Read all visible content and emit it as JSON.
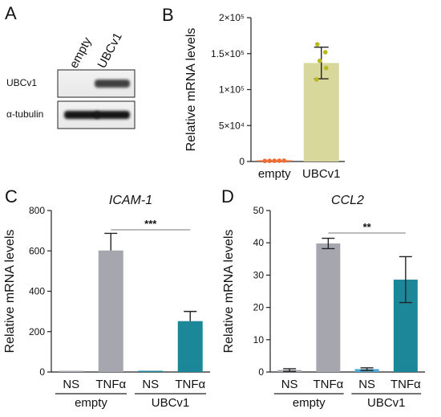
{
  "panels": {
    "A": "A",
    "B": "B",
    "C": "C",
    "D": "D"
  },
  "blot": {
    "lanes": [
      "empty",
      "UBCv1"
    ],
    "rows": [
      {
        "label": "UBCv1",
        "intensity": [
          0.0,
          0.75
        ]
      },
      {
        "label": "α-tubulin",
        "intensity": [
          0.95,
          0.95
        ]
      }
    ]
  },
  "chart_data": [
    {
      "id": "B",
      "type": "bar",
      "ylabel": "Relative mRNA levels",
      "categories": [
        "empty",
        "UBCv1"
      ],
      "ylim": [
        0,
        200000
      ],
      "yticks": [
        {
          "value": 0,
          "label": "0"
        },
        {
          "value": 50000,
          "label": "5×10⁴"
        },
        {
          "value": 100000,
          "label": "1×10⁵"
        },
        {
          "value": 150000,
          "label": "1.5×10⁵"
        },
        {
          "value": 200000,
          "label": "2×10⁵"
        }
      ],
      "values": [
        1000,
        137000
      ],
      "errors": [
        0,
        22000
      ],
      "points": [
        [
          800,
          900,
          1000,
          1100,
          1200
        ],
        [
          114000,
          130000,
          140000,
          152000,
          163000
        ]
      ],
      "colors": {
        "bar0": "#f26b30",
        "bar1": "#d8d89c",
        "points1": "#b9b91f"
      }
    },
    {
      "id": "C",
      "type": "bar",
      "title": "ICAM-1",
      "ylabel": "Relative mRNA levels",
      "ylim": [
        0,
        800
      ],
      "yticks": [
        {
          "value": 0,
          "label": "0"
        },
        {
          "value": 200,
          "label": "200"
        },
        {
          "value": 400,
          "label": "400"
        },
        {
          "value": 600,
          "label": "600"
        },
        {
          "value": 800,
          "label": "800"
        }
      ],
      "categories": [
        "NS",
        "TNFα",
        "NS",
        "TNFα"
      ],
      "groups": [
        {
          "label": "empty",
          "indices": [
            0,
            1
          ]
        },
        {
          "label": "UBCv1",
          "indices": [
            2,
            3
          ]
        }
      ],
      "values": [
        1,
        602,
        1,
        252
      ],
      "errors": [
        0,
        85,
        0,
        48
      ],
      "colors": [
        "#a6a6ae",
        "#a6a6ae",
        "#1d879a",
        "#1d879a"
      ],
      "significance": {
        "label": "***",
        "between": [
          1,
          3
        ]
      }
    },
    {
      "id": "D",
      "type": "bar",
      "title": "CCL2",
      "ylabel": "Relative mRNA levels",
      "ylim": [
        0,
        50
      ],
      "yticks": [
        {
          "value": 0,
          "label": "0"
        },
        {
          "value": 10,
          "label": "10"
        },
        {
          "value": 20,
          "label": "20"
        },
        {
          "value": 30,
          "label": "30"
        },
        {
          "value": 40,
          "label": "40"
        },
        {
          "value": 50,
          "label": "50"
        }
      ],
      "categories": [
        "NS",
        "TNFα",
        "NS",
        "TNFα"
      ],
      "groups": [
        {
          "label": "empty",
          "indices": [
            0,
            1
          ]
        },
        {
          "label": "UBCv1",
          "indices": [
            2,
            3
          ]
        }
      ],
      "values": [
        0.6,
        39.8,
        0.9,
        28.6
      ],
      "errors": [
        0.4,
        1.6,
        0.4,
        7.1
      ],
      "colors": [
        "#a6a6ae",
        "#a6a6ae",
        "#4ea8d6",
        "#1d879a"
      ],
      "significance": {
        "label": "**",
        "between": [
          1,
          3
        ]
      }
    }
  ]
}
